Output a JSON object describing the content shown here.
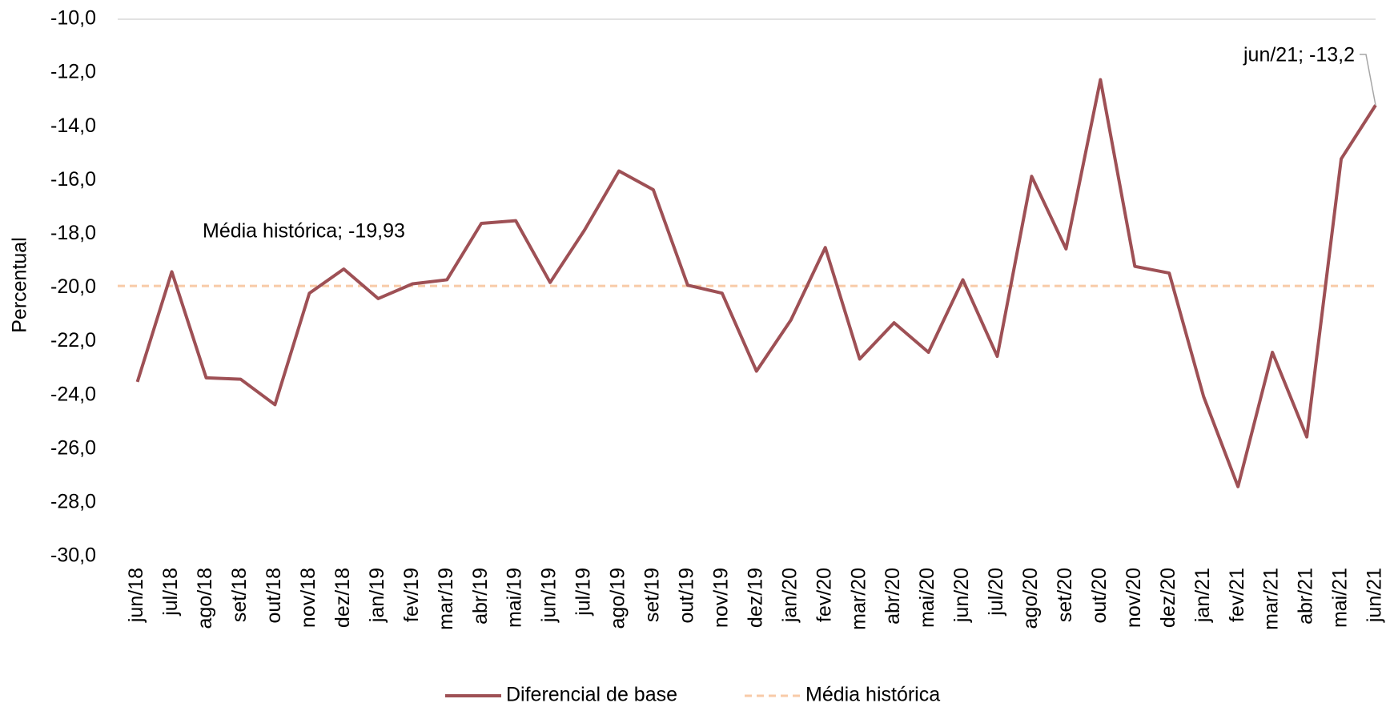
{
  "chart_data": {
    "type": "line",
    "y_label": "Percentual",
    "categories": [
      "jun/18",
      "jul/18",
      "ago/18",
      "set/18",
      "out/18",
      "nov/18",
      "dez/18",
      "jan/19",
      "fev/19",
      "mar/19",
      "abr/19",
      "mai/19",
      "jun/19",
      "jul/19",
      "ago/19",
      "set/19",
      "out/19",
      "nov/19",
      "dez/19",
      "jan/20",
      "fev/20",
      "mar/20",
      "abr/20",
      "mai/20",
      "jun/20",
      "jul/20",
      "ago/20",
      "set/20",
      "out/20",
      "nov/20",
      "dez/20",
      "jan/21",
      "fev/21",
      "mar/21",
      "abr/21",
      "mai/21",
      "jun/21"
    ],
    "series": [
      {
        "name": "Diferencial de base",
        "color": "#9e5055",
        "values": [
          -23.5,
          -19.4,
          -23.35,
          -23.4,
          -24.35,
          -20.2,
          -19.3,
          -20.4,
          -19.85,
          -19.7,
          -17.6,
          -17.5,
          -19.8,
          -17.85,
          -15.65,
          -16.35,
          -19.9,
          -20.2,
          -23.1,
          -21.2,
          -18.5,
          -22.65,
          -21.3,
          -22.4,
          -19.7,
          -22.55,
          -15.85,
          -18.55,
          -12.25,
          -19.2,
          -19.45,
          -24.05,
          -27.4,
          -22.4,
          -25.55,
          -15.2,
          -13.2
        ]
      }
    ],
    "reference": {
      "name": "Média histórica",
      "value": -19.93,
      "color": "#f8cba8"
    },
    "annotations": [
      {
        "text": "Média histórica; -19,93"
      },
      {
        "text": "jun/21; -13,2"
      }
    ],
    "ylim": [
      -30,
      -10
    ],
    "yticks": [
      {
        "value": -30,
        "label": "-30,0"
      },
      {
        "value": -28,
        "label": "-28,0"
      },
      {
        "value": -26,
        "label": "-26,0"
      },
      {
        "value": -24,
        "label": "-24,0"
      },
      {
        "value": -22,
        "label": "-22,0"
      },
      {
        "value": -20,
        "label": "-20,0"
      },
      {
        "value": -18,
        "label": "-18,0"
      },
      {
        "value": -16,
        "label": "-16,0"
      },
      {
        "value": -14,
        "label": "-14,0"
      },
      {
        "value": -12,
        "label": "-12,0"
      },
      {
        "value": -10,
        "label": "-10,0"
      }
    ],
    "grid": true,
    "legend": "bottom"
  }
}
